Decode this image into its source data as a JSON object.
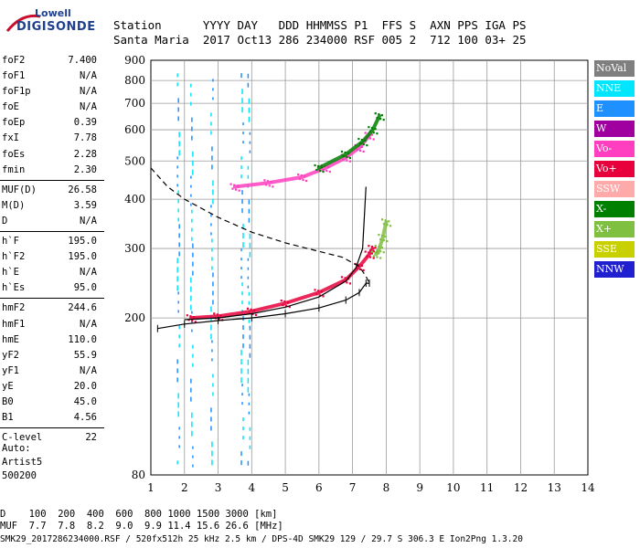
{
  "logo": {
    "line1": "Lowell",
    "line2": "DIGISONDE"
  },
  "header": {
    "line1": "Station      YYYY DAY   DDD HHMMSS P1  FFS S  AXN PPS IGA PS",
    "line2": "Santa Maria  2017 Oct13 286 234000 RSF 005 2  712 100 03+ 25"
  },
  "params": [
    {
      "name": "foF2",
      "value": "7.400"
    },
    {
      "name": "foF1",
      "value": "N/A"
    },
    {
      "name": "foF1p",
      "value": "N/A"
    },
    {
      "name": "foE",
      "value": "N/A"
    },
    {
      "name": "foEp",
      "value": "0.39"
    },
    {
      "name": "fxI",
      "value": "7.78"
    },
    {
      "name": "foEs",
      "value": "2.28"
    },
    {
      "name": "fmin",
      "value": "2.30"
    },
    {
      "name": "MUF(D)",
      "value": "26.58"
    },
    {
      "name": "M(D)",
      "value": "3.59"
    },
    {
      "name": "D",
      "value": "N/A"
    },
    {
      "name": "h`F",
      "value": "195.0"
    },
    {
      "name": "h`F2",
      "value": "195.0"
    },
    {
      "name": "h`E",
      "value": "N/A"
    },
    {
      "name": "h`Es",
      "value": "95.0"
    },
    {
      "name": "hmF2",
      "value": "244.6"
    },
    {
      "name": "hmF1",
      "value": "N/A"
    },
    {
      "name": "hmE",
      "value": "110.0"
    },
    {
      "name": "yF2",
      "value": "55.9"
    },
    {
      "name": "yF1",
      "value": "N/A"
    },
    {
      "name": "yE",
      "value": "20.0"
    },
    {
      "name": "B0",
      "value": "45.0"
    },
    {
      "name": "B1",
      "value": "4.56"
    },
    {
      "name": "C-level",
      "value": "22"
    }
  ],
  "auto": {
    "line1": "Auto:",
    "line2": "Artist5",
    "line3": "500200"
  },
  "legend": [
    {
      "label": "NoVal",
      "color": "#7f7f7f"
    },
    {
      "label": "NNE",
      "color": "#00e6ff"
    },
    {
      "label": "E",
      "color": "#1e90ff"
    },
    {
      "label": "W",
      "color": "#a000a0"
    },
    {
      "label": "Vo-",
      "color": "#ff3fbf"
    },
    {
      "label": "Vo+",
      "color": "#e8003c"
    },
    {
      "label": "SSW",
      "color": "#ffaaaa"
    },
    {
      "label": "X-",
      "color": "#008000"
    },
    {
      "label": "X+",
      "color": "#80c040"
    },
    {
      "label": "SSE",
      "color": "#c8d000"
    },
    {
      "label": "NNW",
      "color": "#2020d0"
    }
  ],
  "bottom": {
    "line1": "D    100  200  400  600  800 1000 1500 3000 [km]",
    "line2": "MUF  7.7  7.8  8.2  9.0  9.9 11.4 15.6 26.6 [MHz]"
  },
  "footer": "SMK29_2017286234000.RSF / 520fx512h 25 kHz 2.5 km / DPS-4D SMK29 129 / 29.7 S 306.3 E Ion2Png 1.3.20",
  "chart_data": {
    "type": "scatter",
    "title": "",
    "xlabel": "",
    "ylabel": "",
    "xlim": [
      1,
      14
    ],
    "ylim": [
      80,
      900
    ],
    "y_scale": "log",
    "grid": true,
    "x_ticks": [
      1,
      2,
      3,
      4,
      5,
      6,
      7,
      8,
      9,
      10,
      11,
      12,
      13,
      14
    ],
    "y_ticks": [
      80,
      200,
      300,
      400,
      500,
      600,
      700,
      800,
      900
    ],
    "series": [
      {
        "name": "Vo+",
        "color": "#e8003c",
        "x": [
          2.2,
          3.0,
          4.0,
          5.0,
          6.0,
          6.8,
          7.2,
          7.5,
          7.6
        ],
        "y": [
          200,
          202,
          208,
          218,
          232,
          250,
          270,
          290,
          300
        ]
      },
      {
        "name": "Vo-",
        "color": "#ff3fbf",
        "x": [
          3.5,
          4.5,
          5.5,
          6.2,
          6.8,
          7.2,
          7.5
        ],
        "y": [
          430,
          440,
          455,
          480,
          510,
          540,
          580
        ]
      },
      {
        "name": "X-",
        "color": "#008000",
        "x": [
          6.0,
          6.8,
          7.3,
          7.6,
          7.8
        ],
        "y": [
          480,
          520,
          560,
          600,
          650
        ]
      },
      {
        "name": "X+",
        "color": "#80c040",
        "x": [
          7.7,
          7.8,
          7.9,
          8.0
        ],
        "y": [
          290,
          300,
          320,
          350
        ]
      }
    ],
    "trace_upper": {
      "x": [
        2.0,
        3.0,
        4.0,
        5.0,
        6.0,
        6.8,
        7.1,
        7.3,
        7.4
      ],
      "y": [
        198,
        200,
        205,
        213,
        226,
        248,
        268,
        300,
        430
      ]
    },
    "trace_lower": {
      "x": [
        1.2,
        2.0,
        3.0,
        4.0,
        5.0,
        6.0,
        6.8,
        7.2,
        7.4,
        7.5
      ],
      "y": [
        188,
        193,
        197,
        200,
        205,
        212,
        222,
        232,
        245,
        245
      ]
    },
    "profile_dashed": {
      "x": [
        1.0,
        1.5,
        2.0,
        3.0,
        4.0,
        5.0,
        6.0,
        6.7,
        7.2,
        7.4,
        7.5
      ],
      "y": [
        480,
        430,
        400,
        360,
        330,
        310,
        295,
        285,
        270,
        255,
        245
      ]
    }
  }
}
